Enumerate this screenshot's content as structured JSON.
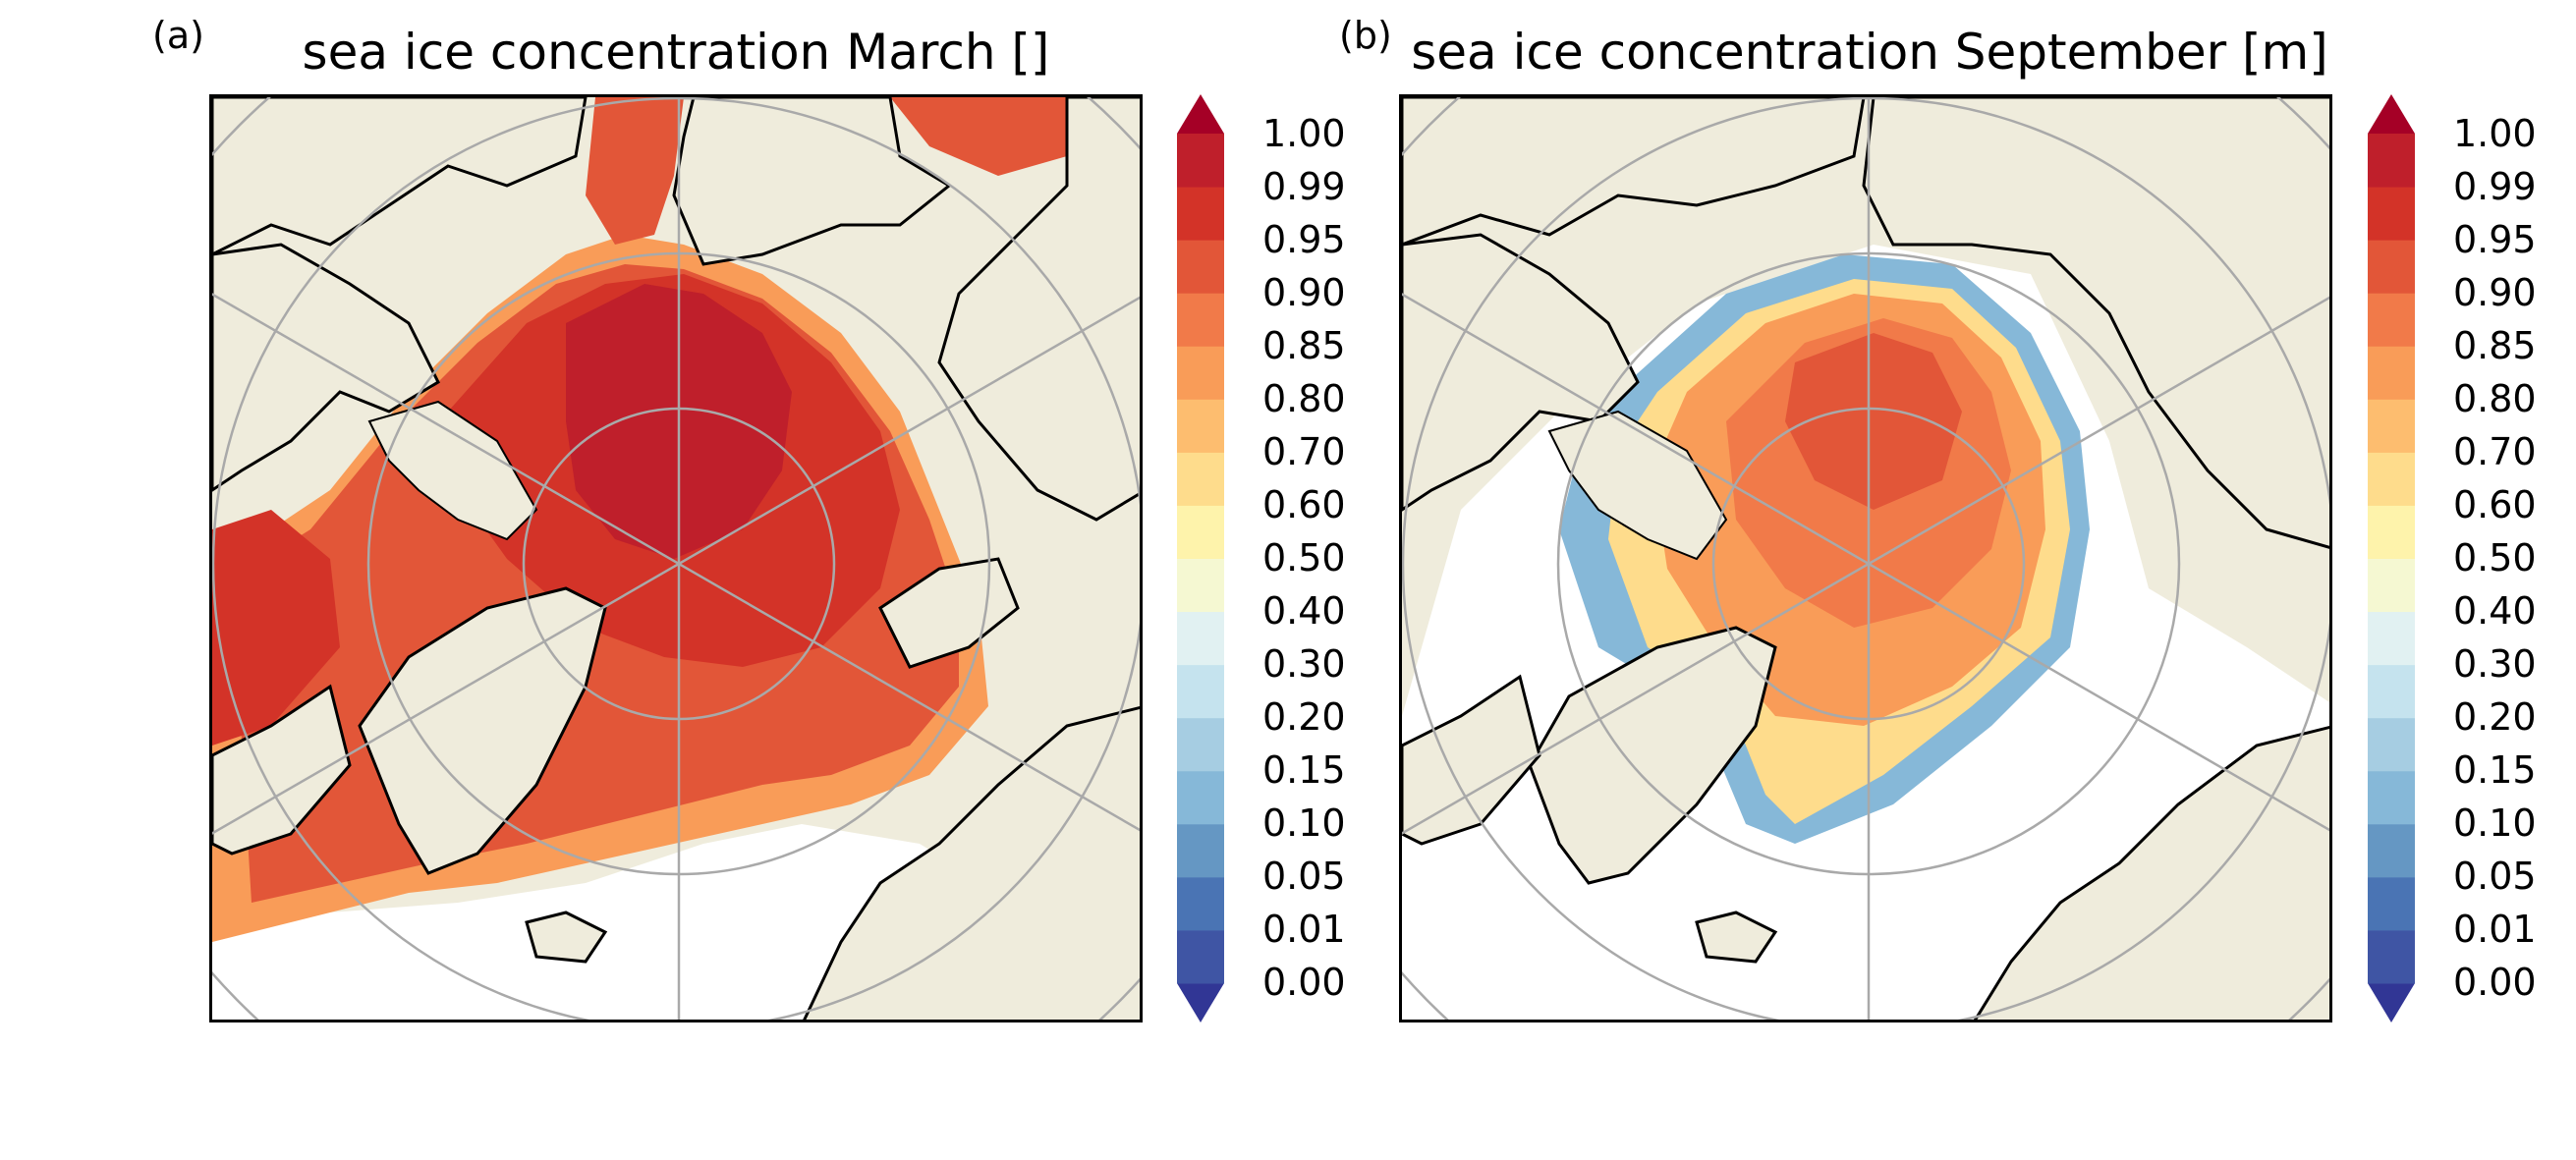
{
  "colors": {
    "land": "#efecdc",
    "ocean": "#ffffff",
    "coast": "#000000",
    "grid": "#a9a9a9",
    "levels": [
      "#313695",
      "#3f55a4",
      "#4a74b4",
      "#6597c3",
      "#86b8d8",
      "#a6cde2",
      "#c5e3ee",
      "#e1f1f2",
      "#f5f8d2",
      "#fef3ab",
      "#fedc8c",
      "#fdbd6f",
      "#f99c58",
      "#f17a49",
      "#e25638",
      "#d33328",
      "#bf1f2b",
      "#a50026"
    ]
  },
  "colorbar_ticks": [
    "0.00",
    "0.01",
    "0.05",
    "0.10",
    "0.15",
    "0.20",
    "0.30",
    "0.40",
    "0.50",
    "0.60",
    "0.70",
    "0.80",
    "0.85",
    "0.90",
    "0.95",
    "0.99",
    "1.00"
  ],
  "panels": [
    {
      "letter": "(a)",
      "title": "sea ice concentration March []"
    },
    {
      "letter": "(b)",
      "title": "sea ice concentration September [m]"
    }
  ]
}
